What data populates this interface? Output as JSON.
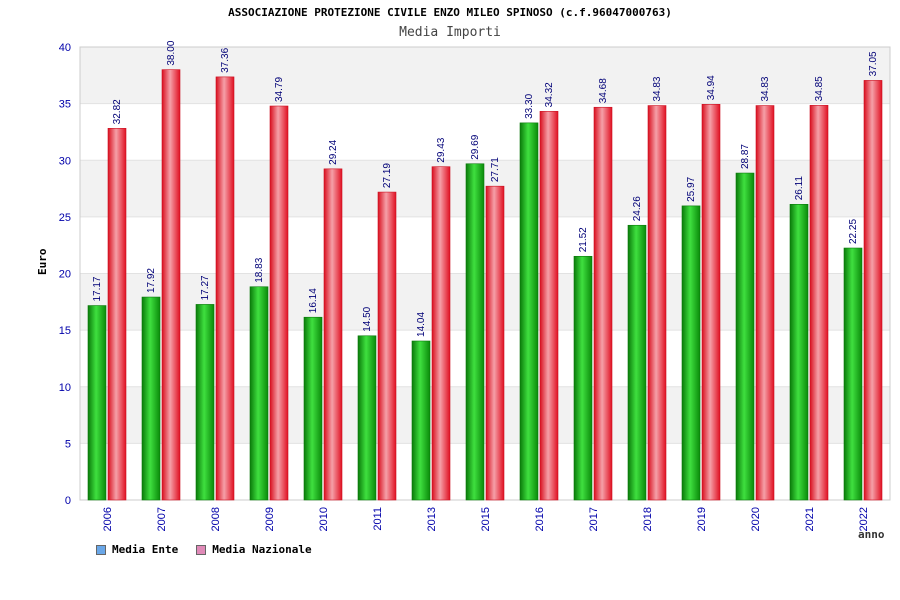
{
  "chart_data": {
    "type": "bar",
    "title": "ASSOCIAZIONE PROTEZIONE CIVILE ENZO MILEO SPINOSO (c.f.96047000763)",
    "subtitle": "Media Importi",
    "ylabel": "Euro",
    "xlabel": "anno",
    "ylim": [
      0,
      40
    ],
    "yticks": [
      "0",
      "5",
      "10",
      "15",
      "20",
      "25",
      "30",
      "35",
      "40"
    ],
    "grid": true,
    "legend_position": "bottom-left",
    "categories": [
      "2006",
      "2007",
      "2008",
      "2009",
      "2010",
      "2011",
      "2013",
      "2015",
      "2016",
      "2017",
      "2018",
      "2019",
      "2020",
      "2021",
      "2022"
    ],
    "series": [
      {
        "name": "Media Ente",
        "color": "#22bb22",
        "legend_color": "#6aa7e8",
        "values": [
          17.17,
          17.92,
          17.27,
          18.83,
          16.14,
          14.5,
          14.04,
          29.69,
          33.3,
          21.52,
          24.26,
          25.97,
          28.87,
          26.11,
          22.25
        ],
        "labels": [
          "17.17",
          "17.92",
          "17.27",
          "18.83",
          "16.14",
          "14.50",
          "14.04",
          "29.69",
          "33.30",
          "21.52",
          "24.26",
          "25.97",
          "28.87",
          "26.11",
          "22.25"
        ]
      },
      {
        "name": "Media Nazionale",
        "color": "#ee2233",
        "legend_color": "#e08ab8",
        "values": [
          32.82,
          38.0,
          37.36,
          34.79,
          29.24,
          27.19,
          29.43,
          27.71,
          34.32,
          34.68,
          34.83,
          34.94,
          34.83,
          34.85,
          37.05
        ],
        "labels": [
          "32.82",
          "38.00",
          "37.36",
          "34.79",
          "29.24",
          "27.19",
          "29.43",
          "27.71",
          "34.32",
          "34.68",
          "34.83",
          "34.94",
          "34.83",
          "34.85",
          "37.05"
        ]
      }
    ]
  }
}
